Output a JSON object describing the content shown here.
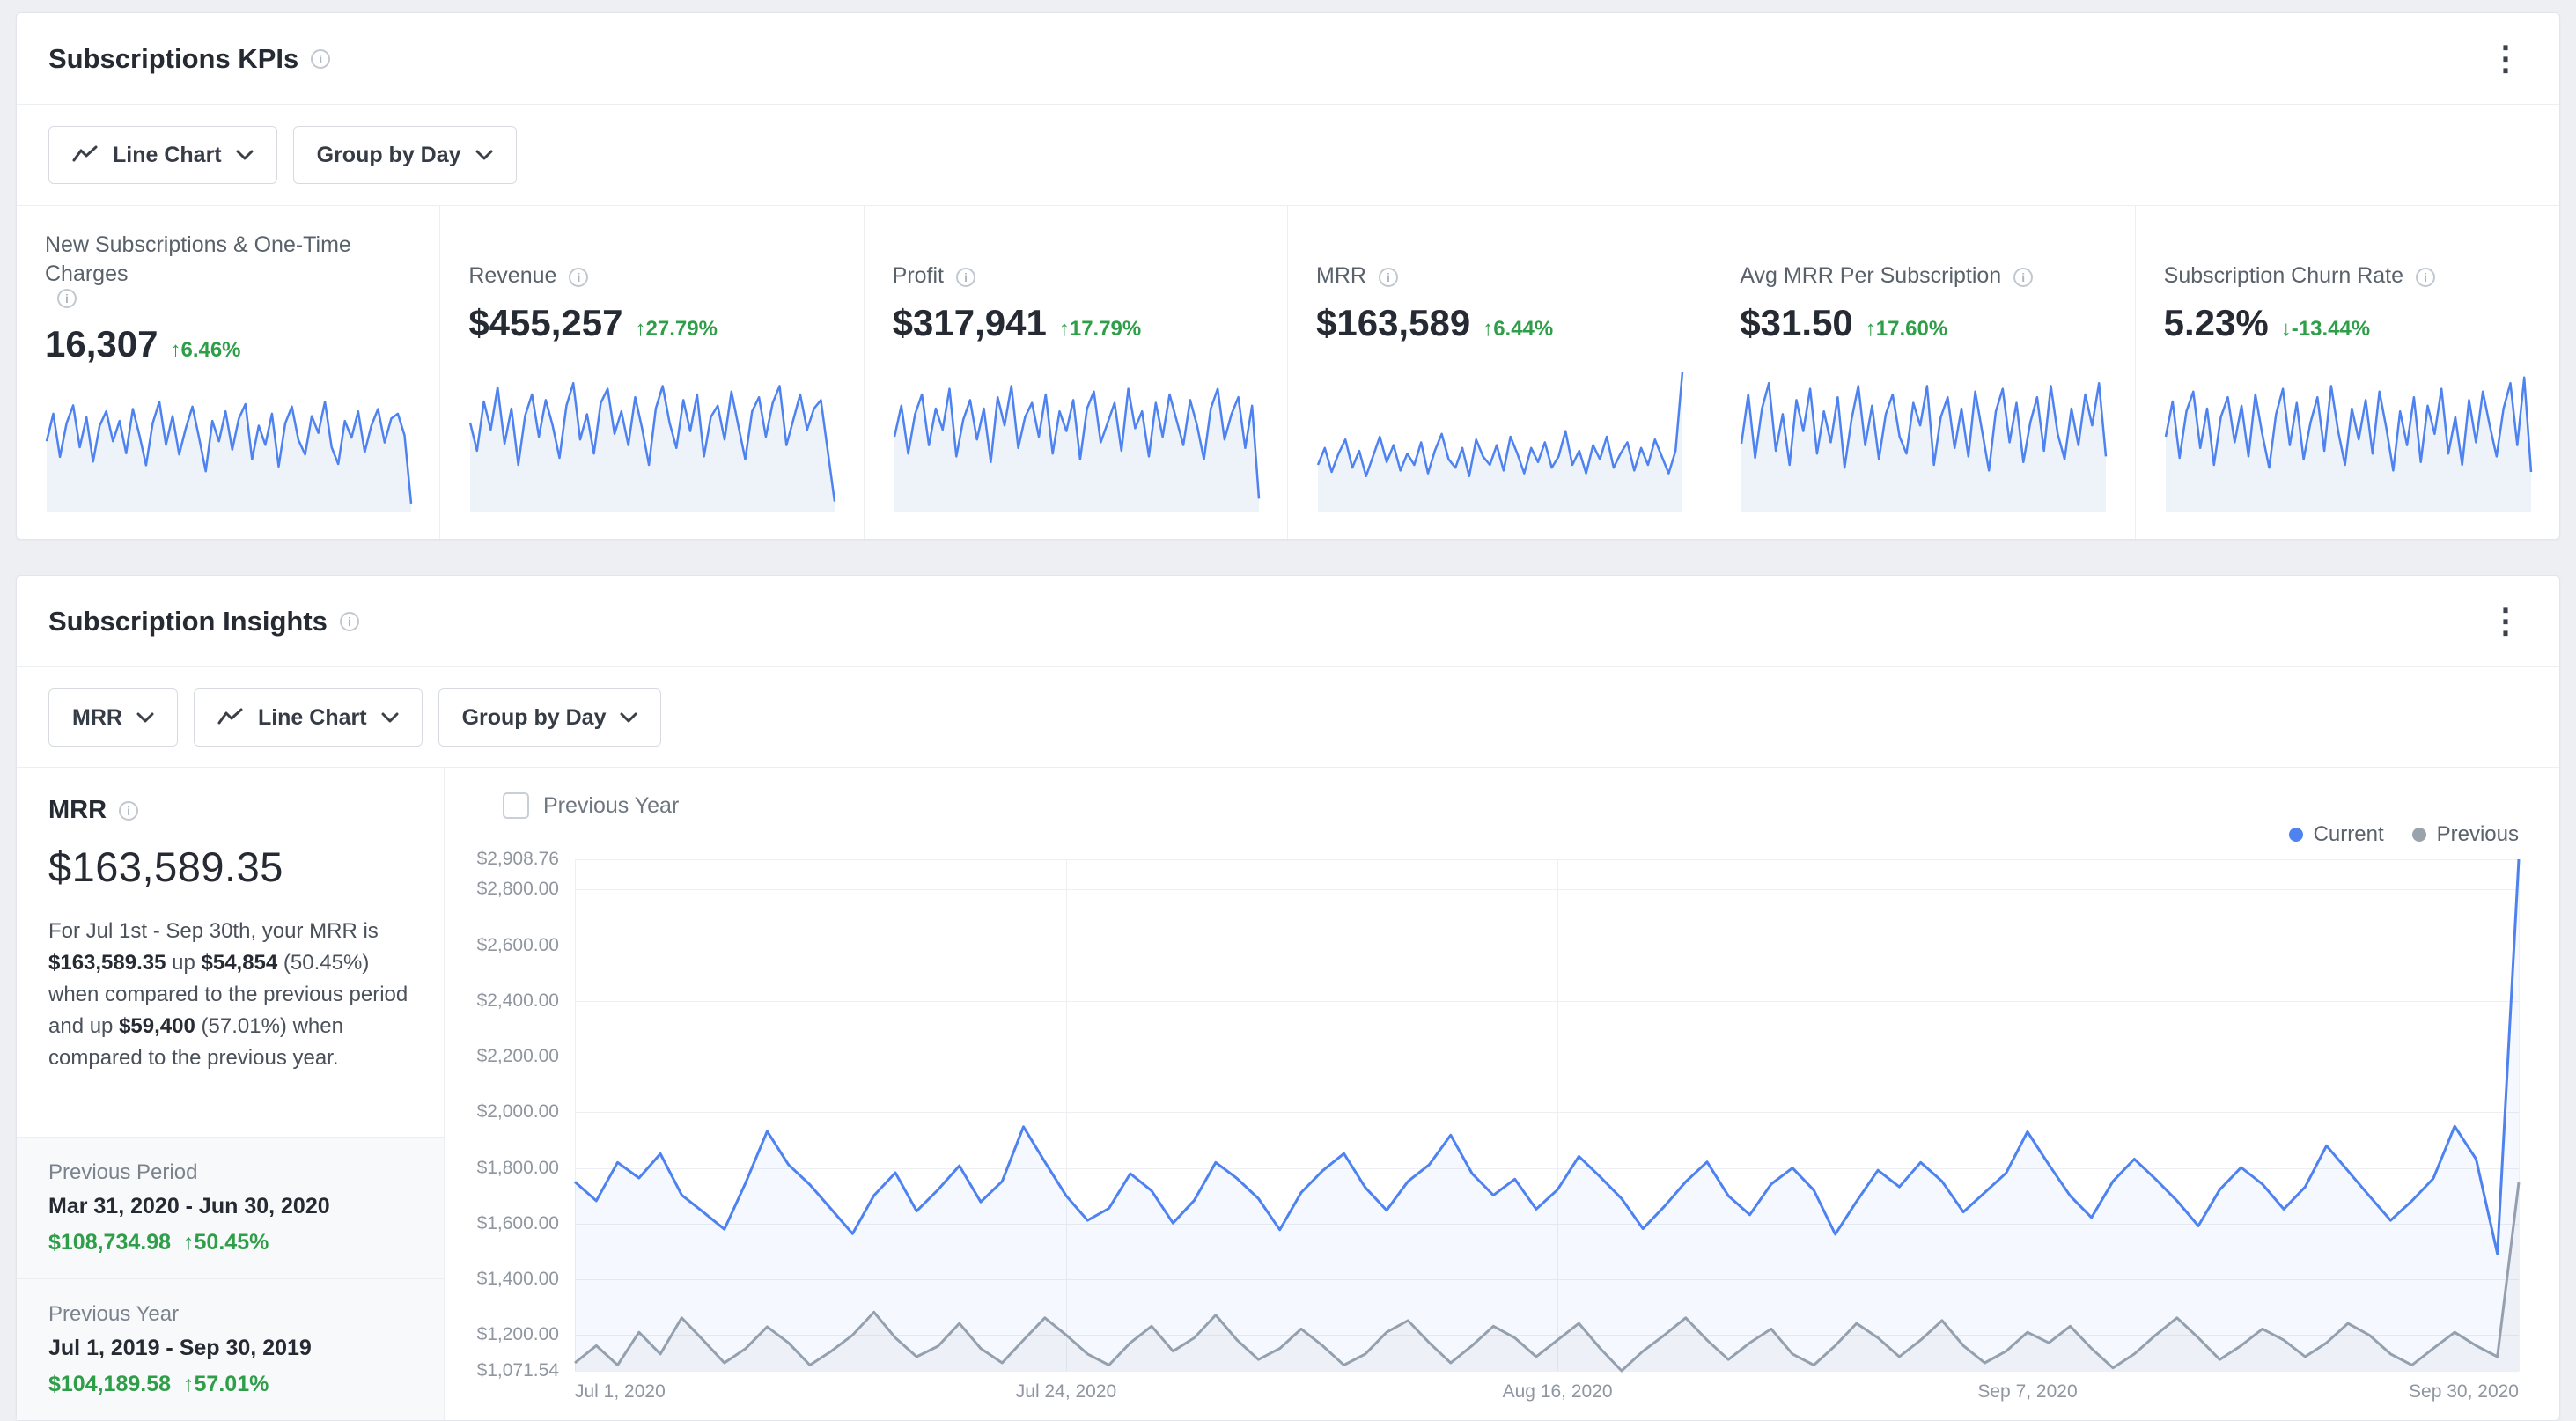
{
  "icons": {
    "info": "i",
    "kebab": "⋮"
  },
  "colors": {
    "blue": "#4d82f0",
    "green": "#2f9e48",
    "gray_line": "#9aa2ab",
    "spark_fill": "rgba(90,130,200,0.10)"
  },
  "kpi": {
    "title": "Subscriptions KPIs",
    "toolbar": {
      "chart_type": "Line Chart",
      "group_by": "Group by Day"
    },
    "cards": [
      {
        "label": "New Subscriptions & One-Time Charges",
        "value": "16,307",
        "delta": "↑6.46%",
        "spark": [
          55,
          78,
          42,
          70,
          85,
          50,
          75,
          38,
          68,
          80,
          55,
          72,
          45,
          82,
          60,
          35,
          70,
          88,
          52,
          76,
          44,
          66,
          84,
          58,
          30,
          72,
          55,
          80,
          48,
          74,
          86,
          40,
          68,
          52,
          78,
          34,
          70,
          84,
          56,
          44,
          76,
          62,
          88,
          50,
          36,
          72,
          58,
          80,
          46,
          68,
          82,
          54,
          74,
          78,
          60,
          3
        ]
      },
      {
        "label": "Revenue",
        "value": "$455,257",
        "delta": "↑27.79%",
        "spark": [
          60,
          40,
          75,
          55,
          85,
          45,
          70,
          30,
          65,
          80,
          50,
          76,
          58,
          35,
          72,
          88,
          48,
          66,
          38,
          74,
          84,
          52,
          68,
          44,
          78,
          56,
          30,
          70,
          86,
          60,
          42,
          76,
          54,
          80,
          36,
          64,
          72,
          48,
          82,
          58,
          34,
          68,
          78,
          50,
          74,
          86,
          44,
          62,
          80,
          55,
          70,
          76,
          40,
          4
        ]
      },
      {
        "label": "Profit",
        "value": "$317,941",
        "delta": "↑17.79%",
        "spark": [
          50,
          72,
          38,
          66,
          80,
          44,
          70,
          55,
          84,
          36,
          62,
          76,
          48,
          70,
          32,
          78,
          58,
          86,
          42,
          64,
          74,
          50,
          80,
          38,
          68,
          54,
          76,
          34,
          70,
          82,
          46,
          60,
          74,
          40,
          84,
          56,
          68,
          36,
          74,
          50,
          80,
          62,
          44,
          76,
          58,
          34,
          70,
          84,
          48,
          66,
          78,
          42,
          72,
          6
        ]
      },
      {
        "label": "MRR",
        "value": "$163,589",
        "delta": "↑6.44%",
        "spark": [
          30,
          42,
          25,
          38,
          48,
          28,
          40,
          22,
          36,
          50,
          32,
          44,
          26,
          38,
          30,
          46,
          24,
          40,
          52,
          34,
          28,
          42,
          22,
          48,
          36,
          30,
          44,
          26,
          50,
          38,
          24,
          42,
          32,
          46,
          28,
          36,
          54,
          30,
          40,
          24,
          44,
          34,
          50,
          28,
          38,
          46,
          26,
          42,
          30,
          48,
          36,
          24,
          40,
          96
        ]
      },
      {
        "label": "Avg MRR Per Subscription",
        "value": "$31.50",
        "delta": "↑17.60%",
        "spark": [
          45,
          80,
          35,
          70,
          88,
          40,
          66,
          30,
          76,
          54,
          84,
          38,
          68,
          46,
          78,
          28,
          62,
          86,
          44,
          72,
          34,
          66,
          80,
          50,
          38,
          74,
          58,
          86,
          30,
          64,
          78,
          42,
          70,
          36,
          82,
          54,
          26,
          68,
          84,
          46,
          74,
          32,
          60,
          78,
          40,
          86,
          52,
          34,
          70,
          44,
          80,
          58,
          88,
          36
        ]
      },
      {
        "label": "Subscription Churn Rate",
        "value": "5.23%",
        "delta": "↓-13.44%",
        "spark": [
          50,
          75,
          35,
          68,
          82,
          42,
          70,
          30,
          64,
          78,
          46,
          72,
          36,
          80,
          52,
          28,
          66,
          84,
          44,
          74,
          34,
          60,
          78,
          40,
          86,
          54,
          30,
          70,
          48,
          76,
          38,
          82,
          56,
          26,
          68,
          44,
          78,
          32,
          72,
          52,
          84,
          38,
          64,
          30,
          76,
          46,
          82,
          58,
          36,
          70,
          88,
          44,
          92,
          25
        ]
      }
    ]
  },
  "insights": {
    "title": "Subscription Insights",
    "toolbar": {
      "metric": "MRR",
      "chart_type": "Line Chart",
      "group_by": "Group by Day"
    },
    "summary": {
      "label": "MRR",
      "value": "$163,589.35",
      "description": [
        {
          "t": "For Jul 1st - Sep 30th, your MRR is ",
          "b": false
        },
        {
          "t": "$163,589.35",
          "b": true
        },
        {
          "t": " up ",
          "b": false
        },
        {
          "t": "$54,854",
          "b": true
        },
        {
          "t": " (50.45%) when compared to the previous period and up ",
          "b": false
        },
        {
          "t": "$59,400",
          "b": true
        },
        {
          "t": " (57.01%) when compared to the previous year.",
          "b": false
        }
      ],
      "previous_period": {
        "label": "Previous Period",
        "range": "Mar 31, 2020 - Jun 30, 2020",
        "value": "$108,734.98",
        "delta": "↑50.45%"
      },
      "previous_year": {
        "label": "Previous Year",
        "range": "Jul 1, 2019 - Sep 30, 2019",
        "value": "$104,189.58",
        "delta": "↑57.01%"
      }
    },
    "chart_controls": {
      "checkbox_label": "Previous Year"
    }
  },
  "chart_data": {
    "type": "line",
    "title": "MRR",
    "ylim": [
      1071.54,
      2908.76
    ],
    "grid": true,
    "legend_position": "top-right",
    "y_ticks": [
      {
        "v": 2908.76,
        "label": "$2,908.76"
      },
      {
        "v": 2800,
        "label": "$2,800.00"
      },
      {
        "v": 2600,
        "label": "$2,600.00"
      },
      {
        "v": 2400,
        "label": "$2,400.00"
      },
      {
        "v": 2200,
        "label": "$2,200.00"
      },
      {
        "v": 2000,
        "label": "$2,000.00"
      },
      {
        "v": 1800,
        "label": "$1,800.00"
      },
      {
        "v": 1600,
        "label": "$1,600.00"
      },
      {
        "v": 1400,
        "label": "$1,400.00"
      },
      {
        "v": 1200,
        "label": "$1,200.00"
      },
      {
        "v": 1071.54,
        "label": "$1,071.54"
      }
    ],
    "x_ticks": [
      {
        "f": 0,
        "label": "Jul 1, 2020"
      },
      {
        "f": 0.2527,
        "label": "Jul 24, 2020"
      },
      {
        "f": 0.5055,
        "label": "Aug 16, 2020"
      },
      {
        "f": 0.7473,
        "label": "Sep 7, 2020"
      },
      {
        "f": 1,
        "label": "Sep 30, 2020"
      }
    ],
    "series": [
      {
        "name": "Current",
        "color": "#4d82f0",
        "fill": "rgba(77,130,240,0.06)",
        "values": [
          1750,
          1682,
          1820,
          1764,
          1851,
          1703,
          1642,
          1580,
          1748,
          1932,
          1812,
          1740,
          1652,
          1564,
          1701,
          1783,
          1645,
          1722,
          1808,
          1678,
          1752,
          1948,
          1822,
          1700,
          1612,
          1655,
          1780,
          1718,
          1602,
          1684,
          1820,
          1762,
          1690,
          1578,
          1712,
          1790,
          1852,
          1730,
          1648,
          1752,
          1812,
          1918,
          1780,
          1702,
          1760,
          1652,
          1722,
          1842,
          1768,
          1690,
          1582,
          1662,
          1750,
          1822,
          1700,
          1632,
          1742,
          1800,
          1720,
          1562,
          1680,
          1792,
          1732,
          1820,
          1752,
          1642,
          1712,
          1782,
          1930,
          1812,
          1700,
          1622,
          1752,
          1832,
          1760,
          1682,
          1592,
          1722,
          1802,
          1742,
          1652,
          1732,
          1880,
          1790,
          1700,
          1612,
          1682,
          1762,
          1950,
          1832,
          1492,
          2908.76
        ]
      },
      {
        "name": "Previous",
        "color": "#9aa2ab",
        "fill": "rgba(154,162,171,0.08)",
        "values": [
          1100,
          1162,
          1092,
          1210,
          1132,
          1262,
          1182,
          1100,
          1152,
          1230,
          1172,
          1092,
          1142,
          1200,
          1282,
          1190,
          1122,
          1160,
          1242,
          1152,
          1100,
          1182,
          1262,
          1200,
          1132,
          1092,
          1172,
          1232,
          1142,
          1190,
          1272,
          1182,
          1112,
          1152,
          1222,
          1162,
          1092,
          1132,
          1210,
          1252,
          1172,
          1100,
          1162,
          1232,
          1190,
          1122,
          1182,
          1242,
          1152,
          1071.54,
          1142,
          1200,
          1262,
          1182,
          1112,
          1172,
          1222,
          1132,
          1092,
          1162,
          1242,
          1190,
          1122,
          1182,
          1252,
          1162,
          1100,
          1142,
          1210,
          1172,
          1232,
          1152,
          1082,
          1132,
          1200,
          1262,
          1190,
          1112,
          1162,
          1222,
          1182,
          1122,
          1172,
          1242,
          1200,
          1132,
          1092,
          1152,
          1210,
          1162,
          1122,
          1748
        ]
      }
    ]
  }
}
